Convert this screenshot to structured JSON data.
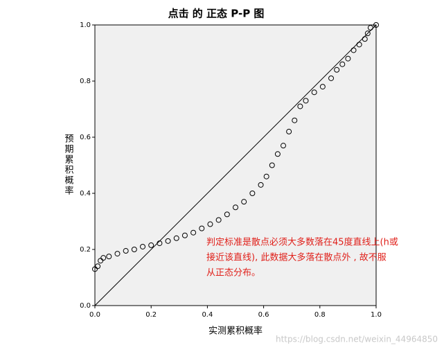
{
  "chart_data": {
    "type": "scatter",
    "title": "点击 的 正态 P-P 图",
    "x_label": "实测累积概率",
    "y_label": "预期累积概率",
    "xlim": [
      0,
      1
    ],
    "ylim": [
      0,
      1
    ],
    "xticks": [
      {
        "value": 0,
        "label": "0.0"
      },
      0.2,
      0.4,
      0.6,
      0.8,
      {
        "value": 1,
        "label": "1.0"
      }
    ],
    "yticks": [
      {
        "value": 0,
        "label": "0.0"
      },
      0.2,
      0.4,
      0.6,
      0.8,
      {
        "value": 1,
        "label": "1.0"
      }
    ],
    "color": "#000000",
    "x": [
      0,
      0.01,
      0.02,
      0.03,
      0.05,
      0.08,
      0.11,
      0.14,
      0.17,
      0.2,
      0.23,
      0.26,
      0.29,
      0.32,
      0.35,
      0.38,
      0.41,
      0.44,
      0.47,
      0.5,
      0.53,
      0.56,
      0.59,
      0.61,
      0.63,
      0.65,
      0.67,
      0.69,
      0.71,
      0.73,
      0.75,
      0.78,
      0.81,
      0.84,
      0.86,
      0.88,
      0.9,
      0.92,
      0.94,
      0.96,
      0.97,
      0.98,
      1.0
    ],
    "values": [
      0.13,
      0.14,
      0.16,
      0.17,
      0.175,
      0.185,
      0.195,
      0.2,
      0.21,
      0.215,
      0.222,
      0.23,
      0.24,
      0.25,
      0.26,
      0.275,
      0.29,
      0.305,
      0.325,
      0.35,
      0.37,
      0.4,
      0.43,
      0.46,
      0.5,
      0.54,
      0.57,
      0.62,
      0.66,
      0.71,
      0.73,
      0.76,
      0.78,
      0.81,
      0.84,
      0.86,
      0.88,
      0.91,
      0.93,
      0.95,
      0.97,
      0.99,
      1.0
    ],
    "annotation": [
      "判定标准是散点必须大多数落在45度直线上(h或",
      "接近该直线), 此数据大多落在散点外 , 故不服",
      "从正态分布。"
    ],
    "watermark": "https://blog.csdn.net/weixin_44964850"
  }
}
